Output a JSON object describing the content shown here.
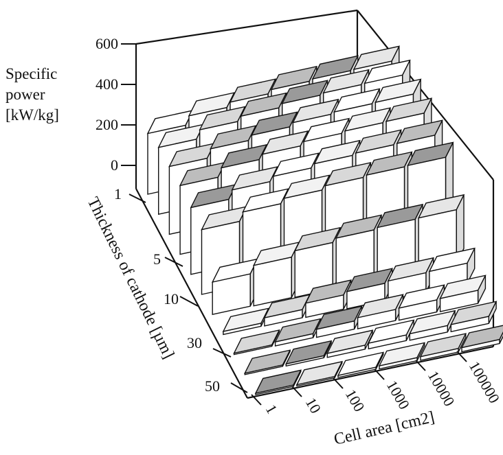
{
  "chart_data": {
    "type": "bar3d",
    "z_axis": {
      "label_lines": [
        "Specific",
        "power",
        "[kW/kg]"
      ],
      "ticks": [
        "600",
        "400",
        "200",
        "0"
      ],
      "range": [
        0,
        600
      ]
    },
    "x_axis": {
      "label": "Cell area [cm2]",
      "categories": [
        "1",
        "10",
        "100",
        "1000",
        "10000",
        "100000"
      ],
      "scale": "log"
    },
    "y_axis": {
      "label": "Thickness of cathode [µm]",
      "tick_labels": [
        "1",
        "5",
        "10",
        "30",
        "50"
      ]
    },
    "series": [
      {
        "thickness": "1",
        "values": [
          300,
          345,
          370,
          390,
          400,
          405
        ]
      },
      {
        "thickness": "2",
        "values": [
          330,
          375,
          400,
          420,
          430,
          435
        ]
      },
      {
        "thickness": "3",
        "values": [
          335,
          380,
          405,
          425,
          435,
          440
        ]
      },
      {
        "thickness": "4",
        "values": [
          340,
          385,
          410,
          430,
          440,
          445
        ]
      },
      {
        "thickness": "5",
        "values": [
          330,
          375,
          400,
          420,
          430,
          435
        ]
      },
      {
        "thickness": "7",
        "values": [
          320,
          365,
          390,
          410,
          420,
          425
        ]
      },
      {
        "thickness": "10",
        "values": [
          160,
          200,
          230,
          250,
          260,
          265
        ]
      },
      {
        "thickness": "20",
        "values": [
          15,
          40,
          70,
          85,
          95,
          100
        ]
      },
      {
        "thickness": "30",
        "values": [
          5,
          20,
          40,
          55,
          60,
          65
        ]
      },
      {
        "thickness": "40",
        "values": [
          2,
          10,
          20,
          28,
          32,
          35
        ]
      },
      {
        "thickness": "50",
        "values": [
          0,
          5,
          10,
          15,
          18,
          20
        ]
      }
    ]
  }
}
